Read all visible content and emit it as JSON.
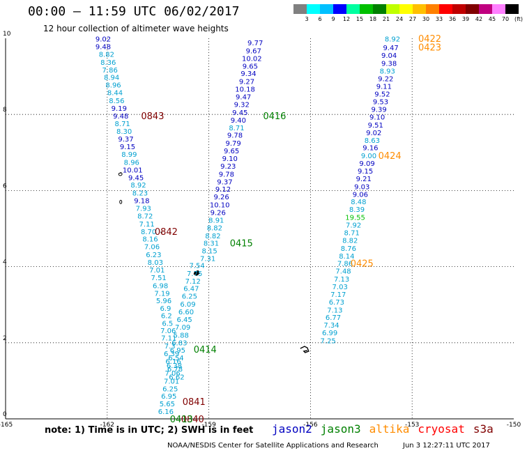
{
  "header": {
    "title": "00:00 – 11:59 UTC 06/02/2017",
    "subtitle": "12 hour collection of altimeter wave heights"
  },
  "legend": {
    "unit": "(ft)",
    "colors": [
      "#808080",
      "#00ffff",
      "#00c0ff",
      "#0000ff",
      "#00ffa0",
      "#00c000",
      "#008000",
      "#c0ff00",
      "#ffff00",
      "#ffc000",
      "#ff8000",
      "#ff0000",
      "#c00000",
      "#800000",
      "#c00080",
      "#ff80ff",
      "#000000"
    ],
    "labels": [
      "3",
      "6",
      "9",
      "12",
      "15",
      "18",
      "21",
      "24",
      "27",
      "30",
      "33",
      "36",
      "39",
      "42",
      "45",
      "70"
    ]
  },
  "axes": {
    "x_ticks": [
      {
        "lon": -165,
        "label": "-165"
      },
      {
        "lon": -162,
        "label": "-162"
      },
      {
        "lon": -159,
        "label": "-159"
      },
      {
        "lon": -156,
        "label": "-156"
      },
      {
        "lon": -153,
        "label": "-153"
      },
      {
        "lon": -150,
        "label": "-150"
      }
    ],
    "y_ticks": [
      {
        "lat": 0,
        "label": "0"
      },
      {
        "lat": 2,
        "label": "2"
      },
      {
        "lat": 4,
        "label": "4"
      },
      {
        "lat": 6,
        "label": "6"
      },
      {
        "lat": 8,
        "label": "8"
      },
      {
        "lat": 10,
        "label": "10"
      }
    ],
    "lon_range": [
      -165,
      -150
    ],
    "lat_range": [
      0,
      10
    ]
  },
  "pass_colors": {
    "jason2": "#0000c0",
    "jason3": "#008000",
    "altika": "#ff8c00",
    "cryosat": "#ff0000",
    "s3a": "#800000",
    "track_light": "#00a0d0",
    "track_cyan": "#40b0e0"
  },
  "tracks": [
    {
      "name": "track-a",
      "color": "#00a0d0",
      "points": [
        {
          "lon": -162.12,
          "lat": 9.99,
          "v": "9.02",
          "c": "#0000c0"
        },
        {
          "lon": -162.12,
          "lat": 9.79,
          "v": "9.48",
          "c": "#0000c0"
        },
        {
          "lon": -162.02,
          "lat": 9.59,
          "v": "8.82",
          "c": "#00a0d0"
        },
        {
          "lon": -161.97,
          "lat": 9.38,
          "v": "8.36",
          "c": "#00a0d0"
        },
        {
          "lon": -161.92,
          "lat": 9.18,
          "v": "7.86",
          "c": "#00a0d0"
        },
        {
          "lon": -161.87,
          "lat": 8.98,
          "v": "8.94",
          "c": "#00a0d0"
        },
        {
          "lon": -161.82,
          "lat": 8.78,
          "v": "8.96",
          "c": "#00a0d0"
        },
        {
          "lon": -161.77,
          "lat": 8.58,
          "v": "8.44",
          "c": "#00a0d0"
        },
        {
          "lon": -161.72,
          "lat": 8.37,
          "v": "8.56",
          "c": "#00a0d0"
        },
        {
          "lon": -161.65,
          "lat": 8.17,
          "v": "9.19",
          "c": "#0000c0"
        },
        {
          "lon": -161.6,
          "lat": 7.97,
          "v": "9.48",
          "c": "#0000c0"
        },
        {
          "lon": -161.55,
          "lat": 7.77,
          "v": "8.71",
          "c": "#00a0d0"
        },
        {
          "lon": -161.5,
          "lat": 7.56,
          "v": "8.30",
          "c": "#00a0d0"
        },
        {
          "lon": -161.45,
          "lat": 7.36,
          "v": "9.37",
          "c": "#0000c0"
        },
        {
          "lon": -161.4,
          "lat": 7.16,
          "v": "9.15",
          "c": "#0000c0"
        },
        {
          "lon": -161.35,
          "lat": 6.96,
          "v": "8.99",
          "c": "#00a0d0"
        },
        {
          "lon": -161.28,
          "lat": 6.75,
          "v": "8.96",
          "c": "#00a0d0"
        },
        {
          "lon": -161.25,
          "lat": 6.55,
          "v": "10.01",
          "c": "#0000c0"
        },
        {
          "lon": -161.15,
          "lat": 6.35,
          "v": "9.45",
          "c": "#0000c0"
        },
        {
          "lon": -161.08,
          "lat": 6.15,
          "v": "8.92",
          "c": "#00a0d0"
        },
        {
          "lon": -161.03,
          "lat": 5.94,
          "v": "8.23",
          "c": "#00a0d0"
        },
        {
          "lon": -160.98,
          "lat": 5.74,
          "v": "9.18",
          "c": "#0000c0"
        },
        {
          "lon": -160.93,
          "lat": 5.54,
          "v": "7.93",
          "c": "#00a0d0"
        },
        {
          "lon": -160.88,
          "lat": 5.34,
          "v": "8.72",
          "c": "#00a0d0"
        },
        {
          "lon": -160.83,
          "lat": 5.13,
          "v": "7.11",
          "c": "#00a0d0"
        },
        {
          "lon": -160.78,
          "lat": 4.93,
          "v": "8.70",
          "c": "#00a0d0"
        },
        {
          "lon": -160.73,
          "lat": 4.73,
          "v": "8.16",
          "c": "#00a0d0"
        },
        {
          "lon": -160.68,
          "lat": 4.53,
          "v": "7.06",
          "c": "#00a0d0"
        },
        {
          "lon": -160.63,
          "lat": 4.32,
          "v": "6.23",
          "c": "#00a0d0"
        },
        {
          "lon": -160.58,
          "lat": 4.12,
          "v": "8.03",
          "c": "#00a0d0"
        },
        {
          "lon": -160.53,
          "lat": 3.92,
          "v": "7.01",
          "c": "#00a0d0"
        },
        {
          "lon": -160.48,
          "lat": 3.72,
          "v": "7.51",
          "c": "#00a0d0"
        },
        {
          "lon": -160.43,
          "lat": 3.51,
          "v": "6.98",
          "c": "#00a0d0"
        },
        {
          "lon": -160.38,
          "lat": 3.31,
          "v": "7.19",
          "c": "#00a0d0"
        },
        {
          "lon": -160.33,
          "lat": 3.11,
          "v": "5.96",
          "c": "#00a0d0"
        },
        {
          "lon": -160.28,
          "lat": 2.91,
          "v": "6.9",
          "c": "#00a0d0"
        },
        {
          "lon": -160.25,
          "lat": 2.72,
          "v": "6.2",
          "c": "#00a0d0"
        },
        {
          "lon": -160.22,
          "lat": 2.52,
          "v": "6.5",
          "c": "#00a0d0"
        },
        {
          "lon": -160.2,
          "lat": 2.33,
          "v": "7.06",
          "c": "#00a0d0"
        },
        {
          "lon": -160.18,
          "lat": 2.13,
          "v": "7.11",
          "c": "#00a0d0"
        },
        {
          "lon": -160.15,
          "lat": 1.92,
          "v": "7.3",
          "c": "#00a0d0"
        },
        {
          "lon": -160.1,
          "lat": 1.72,
          "v": "6.39",
          "c": "#00a0d0"
        },
        {
          "lon": -160.05,
          "lat": 1.52,
          "v": "6.16",
          "c": "#00a0d0"
        },
        {
          "lon": -160.0,
          "lat": 1.32,
          "v": "6.78",
          "c": "#00a0d0"
        },
        {
          "lon": -159.95,
          "lat": 1.11,
          "v": "6.62",
          "c": "#00a0d0"
        }
      ]
    },
    {
      "name": "track-b",
      "color": "#00a0d0",
      "points": [
        {
          "lon": -159.35,
          "lat": 4.04,
          "v": "7.54",
          "c": "#00a0d0"
        },
        {
          "lon": -159.42,
          "lat": 3.83,
          "v": "7.75",
          "c": "#00a0d0"
        },
        {
          "lon": -159.47,
          "lat": 3.63,
          "v": "7.12",
          "c": "#00a0d0"
        },
        {
          "lon": -159.52,
          "lat": 3.43,
          "v": "6.47",
          "c": "#00a0d0"
        },
        {
          "lon": -159.57,
          "lat": 3.23,
          "v": "6.25",
          "c": "#00a0d0"
        },
        {
          "lon": -159.62,
          "lat": 3.02,
          "v": "6.09",
          "c": "#00a0d0"
        },
        {
          "lon": -159.67,
          "lat": 2.82,
          "v": "6.60",
          "c": "#00a0d0"
        },
        {
          "lon": -159.72,
          "lat": 2.62,
          "v": "6.45",
          "c": "#00a0d0"
        },
        {
          "lon": -159.77,
          "lat": 2.42,
          "v": "7.09",
          "c": "#00a0d0"
        },
        {
          "lon": -159.82,
          "lat": 2.21,
          "v": "5.88",
          "c": "#00a0d0"
        },
        {
          "lon": -159.87,
          "lat": 2.01,
          "v": "6.83",
          "c": "#00a0d0"
        },
        {
          "lon": -159.92,
          "lat": 1.81,
          "v": "6.95",
          "c": "#00a0d0"
        },
        {
          "lon": -159.97,
          "lat": 1.61,
          "v": "6.54",
          "c": "#00a0d0"
        },
        {
          "lon": -160.02,
          "lat": 1.41,
          "v": "6.38",
          "c": "#00a0d0"
        },
        {
          "lon": -160.07,
          "lat": 1.21,
          "v": "7.06",
          "c": "#00a0d0"
        },
        {
          "lon": -160.1,
          "lat": 1.0,
          "v": "7.01",
          "c": "#00a0d0"
        },
        {
          "lon": -160.14,
          "lat": 0.8,
          "v": "6.25",
          "c": "#00a0d0"
        },
        {
          "lon": -160.18,
          "lat": 0.6,
          "v": "6.95",
          "c": "#00a0d0"
        },
        {
          "lon": -160.23,
          "lat": 0.4,
          "v": "5.65",
          "c": "#00a0d0"
        },
        {
          "lon": -160.27,
          "lat": 0.2,
          "v": "6.16",
          "c": "#00a0d0"
        }
      ]
    },
    {
      "name": "track-c",
      "color": "#0000c0",
      "points": [
        {
          "lon": -157.63,
          "lat": 9.89,
          "v": "9.77",
          "c": "#0000c0"
        },
        {
          "lon": -157.68,
          "lat": 9.68,
          "v": "9.67",
          "c": "#0000c0"
        },
        {
          "lon": -157.73,
          "lat": 9.48,
          "v": "10.02",
          "c": "#0000c0"
        },
        {
          "lon": -157.78,
          "lat": 9.28,
          "v": "9.65",
          "c": "#0000c0"
        },
        {
          "lon": -157.83,
          "lat": 9.08,
          "v": "9.34",
          "c": "#0000c0"
        },
        {
          "lon": -157.88,
          "lat": 8.87,
          "v": "9.27",
          "c": "#0000c0"
        },
        {
          "lon": -157.93,
          "lat": 8.67,
          "v": "10.18",
          "c": "#0000c0"
        },
        {
          "lon": -157.98,
          "lat": 8.47,
          "v": "9.47",
          "c": "#0000c0"
        },
        {
          "lon": -158.03,
          "lat": 8.27,
          "v": "9.32",
          "c": "#0000c0"
        },
        {
          "lon": -158.08,
          "lat": 8.06,
          "v": "9.45",
          "c": "#0000c0"
        },
        {
          "lon": -158.13,
          "lat": 7.86,
          "v": "9.40",
          "c": "#0000c0"
        },
        {
          "lon": -158.18,
          "lat": 7.66,
          "v": "8.71",
          "c": "#00a0d0"
        },
        {
          "lon": -158.23,
          "lat": 7.46,
          "v": "9.78",
          "c": "#0000c0"
        },
        {
          "lon": -158.28,
          "lat": 7.25,
          "v": "9.79",
          "c": "#0000c0"
        },
        {
          "lon": -158.33,
          "lat": 7.05,
          "v": "9.65",
          "c": "#0000c0"
        },
        {
          "lon": -158.38,
          "lat": 6.85,
          "v": "9.10",
          "c": "#0000c0"
        },
        {
          "lon": -158.43,
          "lat": 6.65,
          "v": "9.23",
          "c": "#0000c0"
        },
        {
          "lon": -158.48,
          "lat": 6.44,
          "v": "9.78",
          "c": "#0000c0"
        },
        {
          "lon": -158.53,
          "lat": 6.24,
          "v": "9.37",
          "c": "#0000c0"
        },
        {
          "lon": -158.58,
          "lat": 6.04,
          "v": "9.12",
          "c": "#0000c0"
        },
        {
          "lon": -158.63,
          "lat": 5.84,
          "v": "9.26",
          "c": "#0000c0"
        },
        {
          "lon": -158.68,
          "lat": 5.63,
          "v": "10.10",
          "c": "#0000c0"
        },
        {
          "lon": -158.73,
          "lat": 5.43,
          "v": "9.26",
          "c": "#0000c0"
        },
        {
          "lon": -158.78,
          "lat": 5.23,
          "v": "8.91",
          "c": "#00a0d0"
        },
        {
          "lon": -158.83,
          "lat": 5.03,
          "v": "8.82",
          "c": "#00a0d0"
        },
        {
          "lon": -158.88,
          "lat": 4.82,
          "v": "8.82",
          "c": "#00a0d0"
        },
        {
          "lon": -158.93,
          "lat": 4.62,
          "v": "8.31",
          "c": "#00a0d0"
        },
        {
          "lon": -158.98,
          "lat": 4.42,
          "v": "8.15",
          "c": "#00a0d0"
        },
        {
          "lon": -159.03,
          "lat": 4.22,
          "v": "7.31",
          "c": "#00a0d0"
        }
      ]
    },
    {
      "name": "track-d",
      "color": "#0000c0",
      "points": [
        {
          "lon": -153.58,
          "lat": 9.99,
          "v": "8.92",
          "c": "#00a0d0"
        },
        {
          "lon": -153.63,
          "lat": 9.76,
          "v": "9.47",
          "c": "#0000c0"
        },
        {
          "lon": -153.68,
          "lat": 9.56,
          "v": "9.04",
          "c": "#0000c0"
        },
        {
          "lon": -153.68,
          "lat": 9.35,
          "v": "9.38",
          "c": "#0000c0"
        },
        {
          "lon": -153.73,
          "lat": 9.15,
          "v": "8.93",
          "c": "#00a0d0"
        },
        {
          "lon": -153.78,
          "lat": 8.95,
          "v": "9.22",
          "c": "#0000c0"
        },
        {
          "lon": -153.83,
          "lat": 8.75,
          "v": "9.11",
          "c": "#0000c0"
        },
        {
          "lon": -153.88,
          "lat": 8.54,
          "v": "9.52",
          "c": "#0000c0"
        },
        {
          "lon": -153.93,
          "lat": 8.34,
          "v": "9.53",
          "c": "#0000c0"
        },
        {
          "lon": -153.98,
          "lat": 8.14,
          "v": "9.39",
          "c": "#0000c0"
        },
        {
          "lon": -154.03,
          "lat": 7.94,
          "v": "9.10",
          "c": "#0000c0"
        },
        {
          "lon": -154.08,
          "lat": 7.73,
          "v": "9.51",
          "c": "#0000c0"
        },
        {
          "lon": -154.13,
          "lat": 7.53,
          "v": "9.02",
          "c": "#0000c0"
        },
        {
          "lon": -154.18,
          "lat": 7.33,
          "v": "8.63",
          "c": "#00a0d0"
        },
        {
          "lon": -154.23,
          "lat": 7.13,
          "v": "9.16",
          "c": "#0000c0"
        },
        {
          "lon": -154.28,
          "lat": 6.92,
          "v": "9.00",
          "c": "#00a0d0"
        },
        {
          "lon": -154.33,
          "lat": 6.72,
          "v": "9.09",
          "c": "#0000c0"
        },
        {
          "lon": -154.38,
          "lat": 6.52,
          "v": "9.15",
          "c": "#0000c0"
        },
        {
          "lon": -154.43,
          "lat": 6.32,
          "v": "9.21",
          "c": "#0000c0"
        },
        {
          "lon": -154.48,
          "lat": 6.11,
          "v": "9.03",
          "c": "#0000c0"
        },
        {
          "lon": -154.53,
          "lat": 5.91,
          "v": "9.06",
          "c": "#0000c0"
        },
        {
          "lon": -154.58,
          "lat": 5.71,
          "v": "8.48",
          "c": "#00a0d0"
        },
        {
          "lon": -154.63,
          "lat": 5.51,
          "v": "8.39",
          "c": "#00a0d0"
        },
        {
          "lon": -154.68,
          "lat": 5.3,
          "v": "19.55",
          "c": "#00c000"
        },
        {
          "lon": -154.73,
          "lat": 5.1,
          "v": "7.92",
          "c": "#00a0d0"
        },
        {
          "lon": -154.78,
          "lat": 4.9,
          "v": "8.71",
          "c": "#00a0d0"
        },
        {
          "lon": -154.83,
          "lat": 4.7,
          "v": "8.82",
          "c": "#00a0d0"
        },
        {
          "lon": -154.88,
          "lat": 4.49,
          "v": "8.76",
          "c": "#00a0d0"
        },
        {
          "lon": -154.93,
          "lat": 4.29,
          "v": "8.14",
          "c": "#00a0d0"
        },
        {
          "lon": -154.98,
          "lat": 4.09,
          "v": "7.86",
          "c": "#00a0d0"
        },
        {
          "lon": -155.03,
          "lat": 3.89,
          "v": "7.48",
          "c": "#00a0d0"
        },
        {
          "lon": -155.08,
          "lat": 3.68,
          "v": "7.13",
          "c": "#00a0d0"
        },
        {
          "lon": -155.13,
          "lat": 3.48,
          "v": "7.03",
          "c": "#00a0d0"
        },
        {
          "lon": -155.18,
          "lat": 3.28,
          "v": "7.17",
          "c": "#00a0d0"
        },
        {
          "lon": -155.23,
          "lat": 3.08,
          "v": "6.73",
          "c": "#00a0d0"
        },
        {
          "lon": -155.28,
          "lat": 2.87,
          "v": "7.13",
          "c": "#00a0d0"
        },
        {
          "lon": -155.33,
          "lat": 2.67,
          "v": "6.77",
          "c": "#00a0d0"
        },
        {
          "lon": -155.38,
          "lat": 2.47,
          "v": "7.34",
          "c": "#00a0d0"
        },
        {
          "lon": -155.43,
          "lat": 2.27,
          "v": "6.99",
          "c": "#00a0d0"
        },
        {
          "lon": -155.48,
          "lat": 2.06,
          "v": "7.25",
          "c": "#00a0d0"
        }
      ]
    }
  ],
  "pass_labels": [
    {
      "text": "0843",
      "lon": -161.0,
      "lat": 7.97,
      "c": "#800000"
    },
    {
      "text": "0842",
      "lon": -160.6,
      "lat": 4.93,
      "c": "#800000"
    },
    {
      "text": "0841",
      "lon": -159.78,
      "lat": 0.46,
      "c": "#800000"
    },
    {
      "text": "0840",
      "lon": -159.82,
      "lat": 0.0,
      "c": "#800000"
    },
    {
      "text": "0416",
      "lon": -157.4,
      "lat": 7.97,
      "c": "#008000"
    },
    {
      "text": "0415",
      "lon": -158.38,
      "lat": 4.62,
      "c": "#008000"
    },
    {
      "text": "0414",
      "lon": -159.45,
      "lat": 1.83,
      "c": "#008000"
    },
    {
      "text": "0413",
      "lon": -160.15,
      "lat": 0.0,
      "c": "#008000"
    },
    {
      "text": "0422",
      "lon": -152.82,
      "lat": 10.0,
      "c": "#ff8c00"
    },
    {
      "text": "0423",
      "lon": -152.82,
      "lat": 9.77,
      "c": "#ff8c00"
    },
    {
      "text": "0424",
      "lon": -154.0,
      "lat": 6.92,
      "c": "#ff8c00"
    },
    {
      "text": "0425",
      "lon": -154.82,
      "lat": 4.09,
      "c": "#ff8c00"
    }
  ],
  "footer": {
    "note": "note: 1) Time is in UTC; 2) SWH is in feet",
    "satellites": [
      {
        "name": "jason2",
        "color": "#0000c0"
      },
      {
        "name": "jason3",
        "color": "#008000"
      },
      {
        "name": "altika",
        "color": "#ff8c00"
      },
      {
        "name": "cryosat",
        "color": "#ff0000"
      },
      {
        "name": "s3a",
        "color": "#800000"
      }
    ],
    "credit": "NOAA/NESDIS Center for Satellite Applications and Research",
    "timestamp": "Jun  3 12:27:11 UTC 2017"
  }
}
